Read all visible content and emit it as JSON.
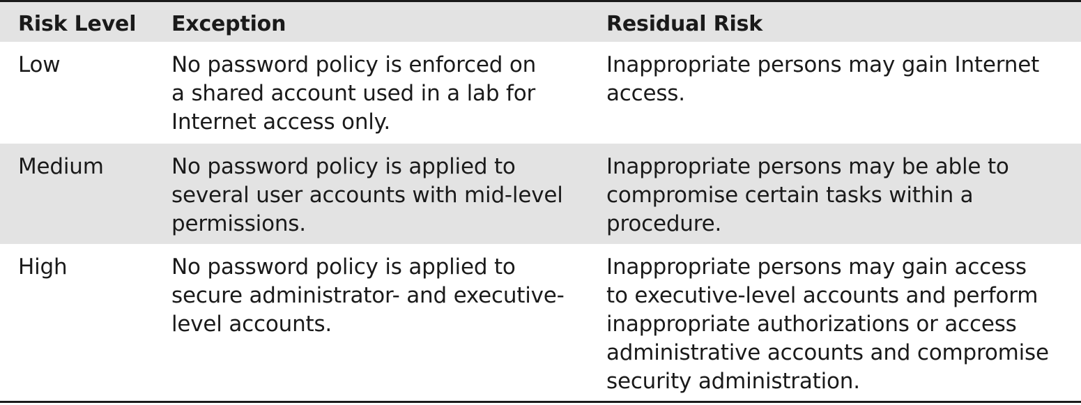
{
  "table": {
    "headers": [
      "Risk Level",
      "Exception",
      "Residual Risk"
    ],
    "rows": [
      {
        "risk_level": "Low",
        "exception_lines": [
          "No password policy is enforced on",
          "a shared account used in a lab for",
          "Internet access only."
        ],
        "residual_risk_lines": [
          "Inappropriate persons may gain Internet",
          "access."
        ]
      },
      {
        "risk_level": "Medium",
        "exception_lines": [
          "No password policy is applied to",
          "several user accounts with mid-level",
          "permissions."
        ],
        "residual_risk_lines": [
          "Inappropriate persons may be able to",
          "compromise certain tasks within a",
          "procedure."
        ]
      },
      {
        "risk_level": "High",
        "exception_lines": [
          "No password policy is applied to",
          "secure administrator- and executive-",
          "level accounts."
        ],
        "residual_risk_lines": [
          "Inappropriate persons may gain access",
          "to executive-level accounts and perform",
          "inappropriate authorizations or access",
          "administrative accounts and compromise",
          "security administration."
        ]
      }
    ]
  }
}
